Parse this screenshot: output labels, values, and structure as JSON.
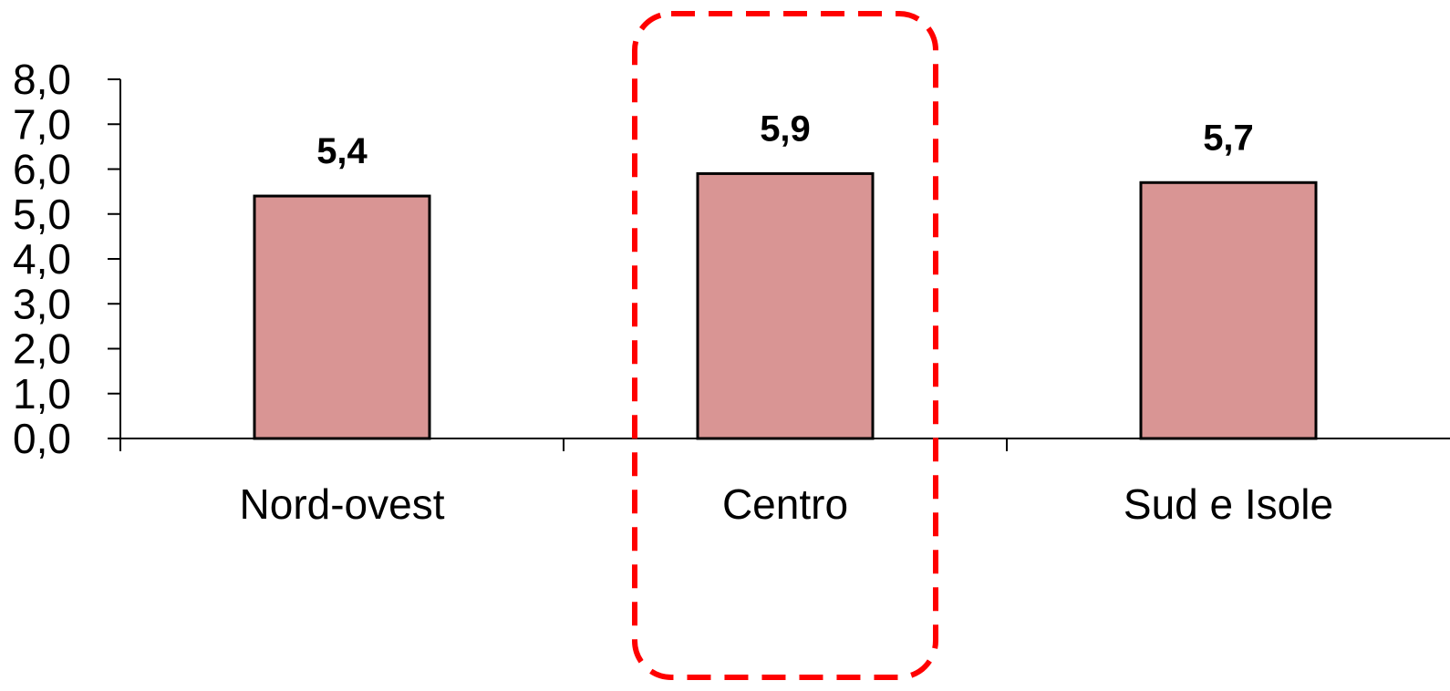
{
  "chart_data": {
    "type": "bar",
    "title": "",
    "xlabel": "",
    "ylabel": "",
    "categories": [
      "Nord-ovest",
      "Centro",
      "Sud e Isole"
    ],
    "values": [
      5.4,
      5.9,
      5.7
    ],
    "value_labels": [
      "5,4",
      "5,9",
      "5,7"
    ],
    "ylim": [
      0,
      8
    ],
    "y_ticks": [
      "0,0",
      "1,0",
      "2,0",
      "3,0",
      "4,0",
      "5,0",
      "6,0",
      "7,0",
      "8,0"
    ],
    "grid": false,
    "legend": "none",
    "highlighted_category": "Centro",
    "colors": {
      "bar_fill": "#d99594",
      "bar_stroke": "#000000",
      "axis": "#000000",
      "highlight_box": "#ff0000"
    }
  }
}
